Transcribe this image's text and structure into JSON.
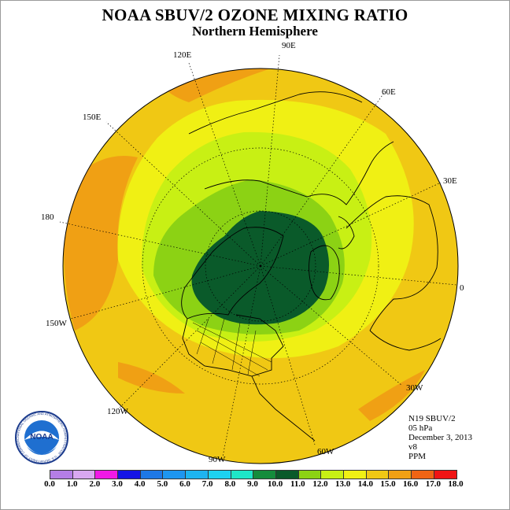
{
  "title": "NOAA SBUV/2 OZONE MIXING RATIO",
  "subtitle": "Northern Hemisphere",
  "info": [
    "N19 SBUV/2",
    "05 hPa",
    "December 3, 2013",
    "v8",
    "PPM"
  ],
  "longitude_labels": [
    "90E",
    "60E",
    "30E",
    "0",
    "30W",
    "60W",
    "90W",
    "120W",
    "150W",
    "180",
    "150E",
    "120E"
  ],
  "logo": {
    "text": "NOAA",
    "ring_text": "NATIONAL OCEANIC AND ATMOSPHERIC ADMINISTRATION · U.S. DEPARTMENT OF COMMERCE"
  },
  "colorbar": {
    "ticks": [
      "0.0",
      "1.0",
      "2.0",
      "3.0",
      "4.0",
      "5.0",
      "6.0",
      "7.0",
      "8.0",
      "9.0",
      "10.0",
      "11.0",
      "12.0",
      "13.0",
      "14.0",
      "15.0",
      "16.0",
      "17.0",
      "18.0"
    ],
    "colors": [
      "#b47ee6",
      "#d8a8f0",
      "#f019e6",
      "#1414e6",
      "#1e78e6",
      "#1e96f0",
      "#1eb4f0",
      "#1ed2f0",
      "#1ee6c8",
      "#148c3c",
      "#0a5a2a",
      "#8cd214",
      "#c8f014",
      "#f0f014",
      "#f0c814",
      "#f0a014",
      "#f06414",
      "#f01414",
      "#8c5a3c"
    ],
    "unit": "PPM"
  },
  "map": {
    "projection": "north polar stereographic",
    "pressure_level": "05 hPa",
    "field_levels_ppm": [
      {
        "range": "13-14",
        "color": "#f0c814",
        "region": "outer band"
      },
      {
        "range": "14-15",
        "color": "#f0a014",
        "region": "patches over Pacific and N. America"
      },
      {
        "range": "12-13",
        "color": "#f0f014",
        "region": "mid-latitude ring"
      },
      {
        "range": "11-12",
        "color": "#c8f014",
        "region": "inner ring"
      },
      {
        "range": "10-11",
        "color": "#8cd214",
        "region": "polar ring"
      },
      {
        "range": "9-10",
        "color": "#0a5a2a",
        "region": "polar core"
      }
    ]
  }
}
